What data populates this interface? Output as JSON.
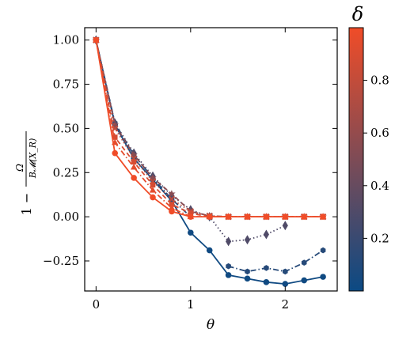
{
  "chart_data": {
    "type": "line",
    "xlabel": "θ",
    "ylabel": "1 − Ω / B𝓜(X_R)",
    "ylabel_parts": {
      "one_minus": "1 −",
      "numerator": "Ω",
      "denominator": "B𝓜(X_R)"
    },
    "xlim": [
      -0.12,
      2.55
    ],
    "ylim": [
      -0.42,
      1.07
    ],
    "xticks": [
      0,
      1,
      2
    ],
    "xtick_labels": [
      "0",
      "1",
      "2"
    ],
    "yticks": [
      1.0,
      0.75,
      0.5,
      0.25,
      0.0,
      -0.25
    ],
    "ytick_labels": [
      "1.00",
      "0.75",
      "0.50",
      "0.25",
      "0.00",
      "−0.25"
    ],
    "grid": false,
    "colorbar": {
      "label": "δ",
      "range": [
        0.0,
        1.0
      ],
      "ticks": [
        0.2,
        0.4,
        0.6,
        0.8
      ],
      "tick_labels": [
        "0.2",
        "0.4",
        "0.6",
        "0.8"
      ],
      "color_low": "#0b4a84",
      "color_high": "#f04c28"
    },
    "x": [
      0,
      0.2,
      0.4,
      0.6,
      0.8,
      1.0,
      1.2,
      1.4,
      1.6,
      1.8,
      2.0,
      2.2,
      2.4
    ],
    "series": [
      {
        "delta": 0.02,
        "line": "solid",
        "marker": "circle",
        "values": [
          1.0,
          0.52,
          0.33,
          0.21,
          0.09,
          -0.09,
          -0.19,
          -0.33,
          -0.35,
          -0.37,
          -0.38,
          -0.36,
          -0.34
        ]
      },
      {
        "delta": 0.12,
        "line": "dashdot",
        "marker": "hexagon",
        "values": [
          1.0,
          0.53,
          0.35,
          0.22,
          0.1,
          0.0,
          null,
          -0.28,
          -0.31,
          -0.29,
          -0.31,
          -0.26,
          -0.19
        ]
      },
      {
        "delta": 0.3,
        "line": "dotted",
        "marker": "diamond",
        "values": [
          1.0,
          0.53,
          0.36,
          0.23,
          0.12,
          0.04,
          0.0,
          -0.14,
          -0.13,
          -0.1,
          -0.05,
          null,
          null
        ]
      },
      {
        "delta": 0.55,
        "line": "dashed",
        "marker": "star",
        "values": [
          1.0,
          0.52,
          0.35,
          0.22,
          0.13,
          0.03,
          0.005,
          0.0,
          0.0,
          0.0,
          0.0,
          0.0,
          0.0
        ]
      },
      {
        "delta": 0.75,
        "line": "dotted",
        "marker": "x",
        "values": [
          1.0,
          0.5,
          0.33,
          0.2,
          0.1,
          0.03,
          0.005,
          0.0,
          0.0,
          0.0,
          0.0,
          0.0,
          0.0
        ]
      },
      {
        "delta": 0.88,
        "line": "dashed",
        "marker": "square",
        "values": [
          1.0,
          0.45,
          0.31,
          0.18,
          0.07,
          0.02,
          0.0,
          0.0,
          0.0,
          0.0,
          0.0,
          0.0,
          0.0
        ]
      },
      {
        "delta": 0.95,
        "line": "dashdot",
        "marker": "triangle",
        "values": [
          1.0,
          0.42,
          0.28,
          0.15,
          0.05,
          0.0,
          0.0,
          0.0,
          0.0,
          0.0,
          0.0,
          0.0,
          0.0
        ]
      },
      {
        "delta": 1.0,
        "line": "solid",
        "marker": "circle",
        "values": [
          1.0,
          0.36,
          0.22,
          0.11,
          0.03,
          0.0,
          0.0,
          0.0,
          0.0,
          0.0,
          0.0,
          0.0,
          0.0
        ]
      }
    ]
  }
}
